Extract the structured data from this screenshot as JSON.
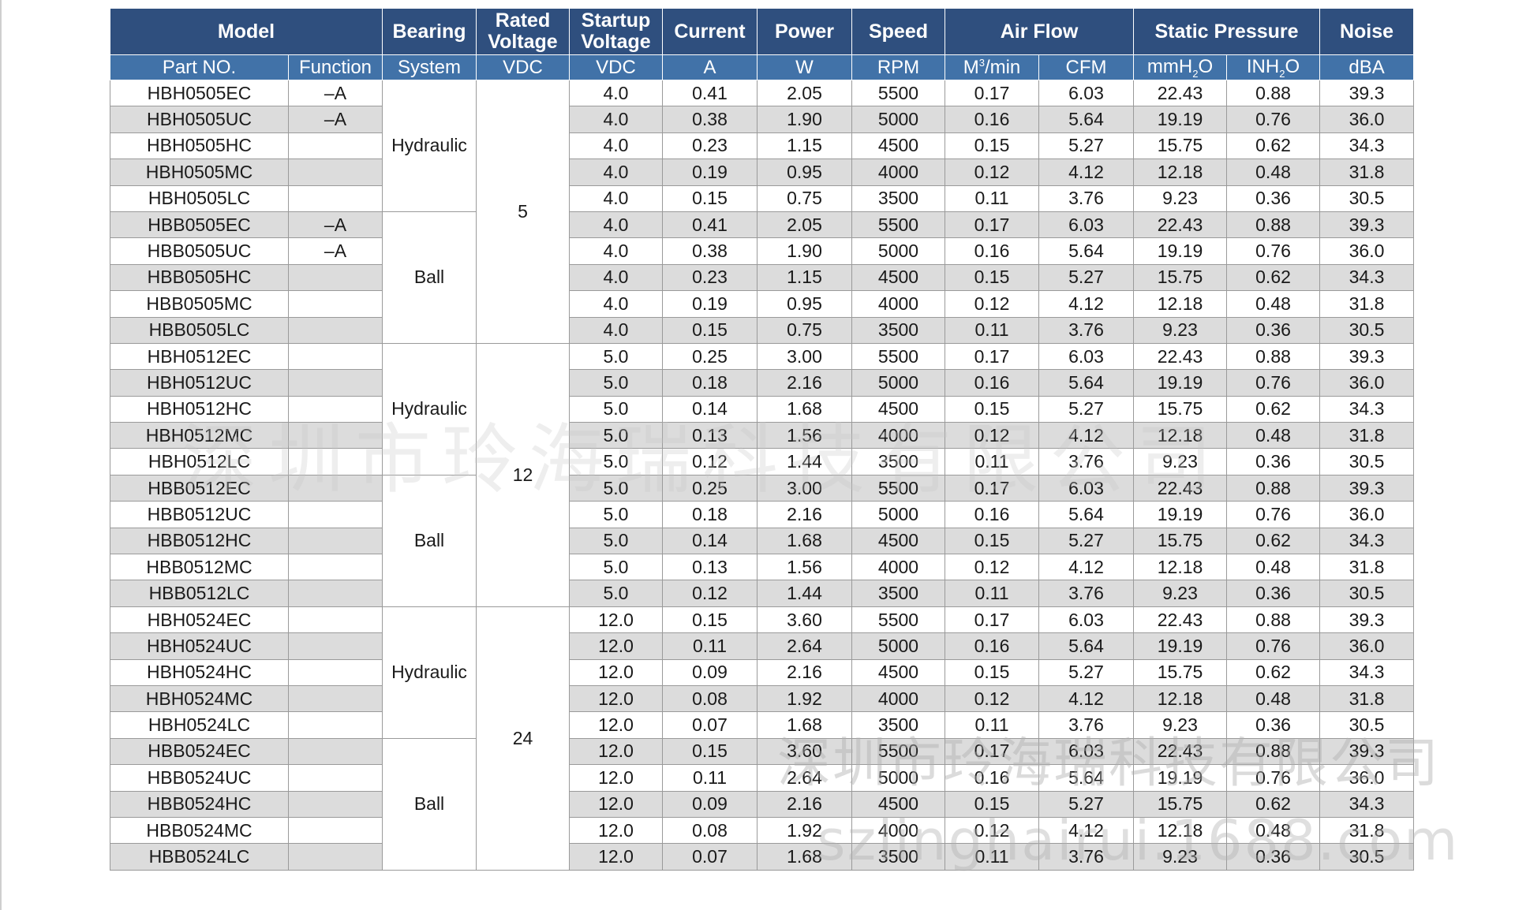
{
  "header": {
    "model": "Model",
    "bearing": "Bearing",
    "rated_voltage_1": "Rated",
    "rated_voltage_2": "Voltage",
    "startup_voltage_1": "Startup",
    "startup_voltage_2": "Voltage",
    "current": "Current",
    "power": "Power",
    "speed": "Speed",
    "air_flow": "Air Flow",
    "static_pressure": "Static Pressure",
    "noise": "Noise"
  },
  "subheader": {
    "part_no": "Part NO.",
    "function": "Function",
    "system": "System",
    "rated_unit": "VDC",
    "startup_unit": "VDC",
    "current_unit": "A",
    "power_unit": "W",
    "speed_unit": "RPM",
    "airflow_m3_a": "M",
    "airflow_m3_sup": "3",
    "airflow_m3_b": "/min",
    "airflow_cfm": "CFM",
    "pressure_mm_a": "mmH",
    "pressure_mm_sub": "2",
    "pressure_mm_b": "O",
    "pressure_in_a": "INH",
    "pressure_in_sub": "2",
    "pressure_in_b": "O",
    "noise_unit": "dBA"
  },
  "bearing_groups": [
    "Hydraulic",
    "Ball",
    "Hydraulic",
    "Ball",
    "Hydraulic",
    "Ball"
  ],
  "voltage_groups": [
    "5",
    "12",
    "24"
  ],
  "rows": [
    [
      "HBH0505EC",
      "–A",
      "4.0",
      "0.41",
      "2.05",
      "5500",
      "0.17",
      "6.03",
      "22.43",
      "0.88",
      "39.3"
    ],
    [
      "HBH0505UC",
      "–A",
      "4.0",
      "0.38",
      "1.90",
      "5000",
      "0.16",
      "5.64",
      "19.19",
      "0.76",
      "36.0"
    ],
    [
      "HBH0505HC",
      "",
      "4.0",
      "0.23",
      "1.15",
      "4500",
      "0.15",
      "5.27",
      "15.75",
      "0.62",
      "34.3"
    ],
    [
      "HBH0505MC",
      "",
      "4.0",
      "0.19",
      "0.95",
      "4000",
      "0.12",
      "4.12",
      "12.18",
      "0.48",
      "31.8"
    ],
    [
      "HBH0505LC",
      "",
      "4.0",
      "0.15",
      "0.75",
      "3500",
      "0.11",
      "3.76",
      "9.23",
      "0.36",
      "30.5"
    ],
    [
      "HBB0505EC",
      "–A",
      "4.0",
      "0.41",
      "2.05",
      "5500",
      "0.17",
      "6.03",
      "22.43",
      "0.88",
      "39.3"
    ],
    [
      "HBB0505UC",
      "–A",
      "4.0",
      "0.38",
      "1.90",
      "5000",
      "0.16",
      "5.64",
      "19.19",
      "0.76",
      "36.0"
    ],
    [
      "HBB0505HC",
      "",
      "4.0",
      "0.23",
      "1.15",
      "4500",
      "0.15",
      "5.27",
      "15.75",
      "0.62",
      "34.3"
    ],
    [
      "HBB0505MC",
      "",
      "4.0",
      "0.19",
      "0.95",
      "4000",
      "0.12",
      "4.12",
      "12.18",
      "0.48",
      "31.8"
    ],
    [
      "HBB0505LC",
      "",
      "4.0",
      "0.15",
      "0.75",
      "3500",
      "0.11",
      "3.76",
      "9.23",
      "0.36",
      "30.5"
    ],
    [
      "HBH0512EC",
      "",
      "5.0",
      "0.25",
      "3.00",
      "5500",
      "0.17",
      "6.03",
      "22.43",
      "0.88",
      "39.3"
    ],
    [
      "HBH0512UC",
      "",
      "5.0",
      "0.18",
      "2.16",
      "5000",
      "0.16",
      "5.64",
      "19.19",
      "0.76",
      "36.0"
    ],
    [
      "HBH0512HC",
      "",
      "5.0",
      "0.14",
      "1.68",
      "4500",
      "0.15",
      "5.27",
      "15.75",
      "0.62",
      "34.3"
    ],
    [
      "HBH0512MC",
      "",
      "5.0",
      "0.13",
      "1.56",
      "4000",
      "0.12",
      "4.12",
      "12.18",
      "0.48",
      "31.8"
    ],
    [
      "HBH0512LC",
      "",
      "5.0",
      "0.12",
      "1.44",
      "3500",
      "0.11",
      "3.76",
      "9.23",
      "0.36",
      "30.5"
    ],
    [
      "HBB0512EC",
      "",
      "5.0",
      "0.25",
      "3.00",
      "5500",
      "0.17",
      "6.03",
      "22.43",
      "0.88",
      "39.3"
    ],
    [
      "HBB0512UC",
      "",
      "5.0",
      "0.18",
      "2.16",
      "5000",
      "0.16",
      "5.64",
      "19.19",
      "0.76",
      "36.0"
    ],
    [
      "HBB0512HC",
      "",
      "5.0",
      "0.14",
      "1.68",
      "4500",
      "0.15",
      "5.27",
      "15.75",
      "0.62",
      "34.3"
    ],
    [
      "HBB0512MC",
      "",
      "5.0",
      "0.13",
      "1.56",
      "4000",
      "0.12",
      "4.12",
      "12.18",
      "0.48",
      "31.8"
    ],
    [
      "HBB0512LC",
      "",
      "5.0",
      "0.12",
      "1.44",
      "3500",
      "0.11",
      "3.76",
      "9.23",
      "0.36",
      "30.5"
    ],
    [
      "HBH0524EC",
      "",
      "12.0",
      "0.15",
      "3.60",
      "5500",
      "0.17",
      "6.03",
      "22.43",
      "0.88",
      "39.3"
    ],
    [
      "HBH0524UC",
      "",
      "12.0",
      "0.11",
      "2.64",
      "5000",
      "0.16",
      "5.64",
      "19.19",
      "0.76",
      "36.0"
    ],
    [
      "HBH0524HC",
      "",
      "12.0",
      "0.09",
      "2.16",
      "4500",
      "0.15",
      "5.27",
      "15.75",
      "0.62",
      "34.3"
    ],
    [
      "HBH0524MC",
      "",
      "12.0",
      "0.08",
      "1.92",
      "4000",
      "0.12",
      "4.12",
      "12.18",
      "0.48",
      "31.8"
    ],
    [
      "HBH0524LC",
      "",
      "12.0",
      "0.07",
      "1.68",
      "3500",
      "0.11",
      "3.76",
      "9.23",
      "0.36",
      "30.5"
    ],
    [
      "HBB0524EC",
      "",
      "12.0",
      "0.15",
      "3.60",
      "5500",
      "0.17",
      "6.03",
      "22.43",
      "0.88",
      "39.3"
    ],
    [
      "HBB0524UC",
      "",
      "12.0",
      "0.11",
      "2.64",
      "5000",
      "0.16",
      "5.64",
      "19.19",
      "0.76",
      "36.0"
    ],
    [
      "HBB0524HC",
      "",
      "12.0",
      "0.09",
      "2.16",
      "4500",
      "0.15",
      "5.27",
      "15.75",
      "0.62",
      "34.3"
    ],
    [
      "HBB0524MC",
      "",
      "12.0",
      "0.08",
      "1.92",
      "4000",
      "0.12",
      "4.12",
      "12.18",
      "0.48",
      "31.8"
    ],
    [
      "HBB0524LC",
      "",
      "12.0",
      "0.07",
      "1.68",
      "3500",
      "0.11",
      "3.76",
      "9.23",
      "0.36",
      "30.5"
    ]
  ],
  "watermarks": {
    "company_cn": "深圳市玲海瑞科技有限公司",
    "company_cn_small": "深圳市玲海瑞科技有限公司",
    "site": "szlinghairui.1688.com"
  },
  "colors": {
    "header_dark": "#2f4f7e",
    "header_light": "#4172a8",
    "row_alt": "#dcdcdc"
  }
}
